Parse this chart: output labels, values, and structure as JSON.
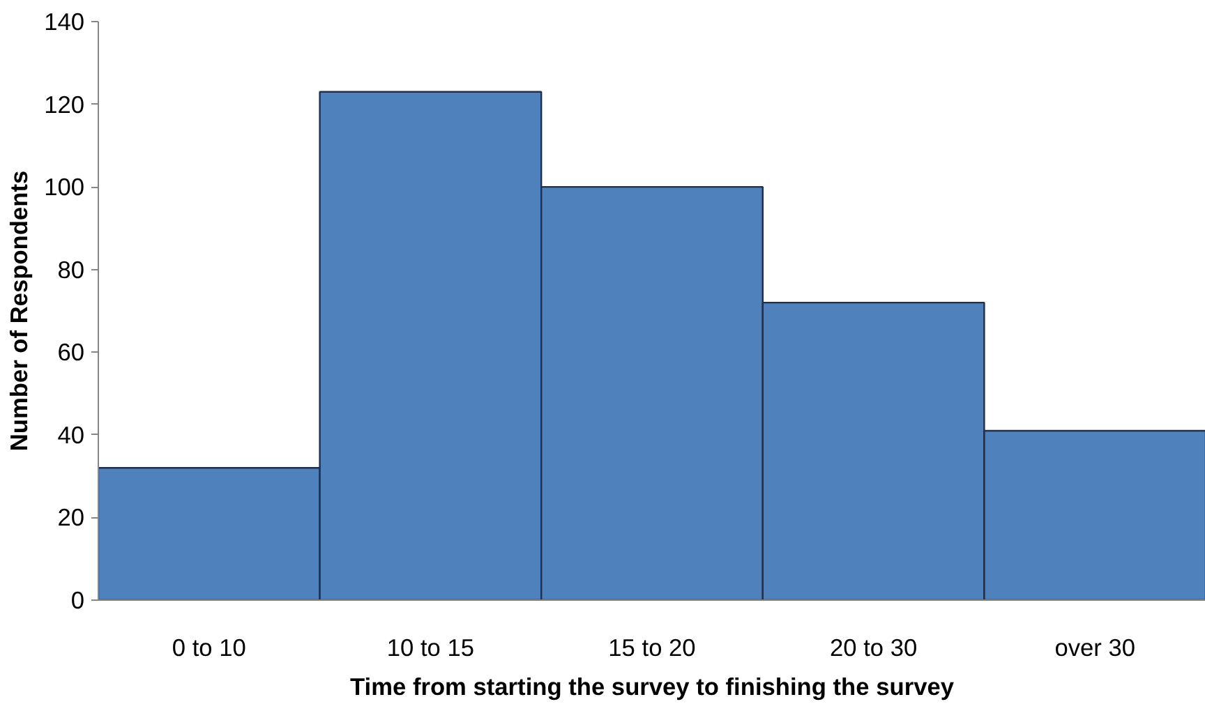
{
  "chart_data": {
    "type": "bar",
    "xlabel": "Time from starting the survey to finishing the survey",
    "ylabel": "Number of Respondents",
    "categories": [
      "0 to 10",
      "10 to 15",
      "15 to 20",
      "20 to 30",
      "over 30"
    ],
    "values": [
      32,
      123,
      100,
      72,
      41
    ],
    "color": "#4f81bd",
    "ylim": [
      0,
      140
    ],
    "yticks": [
      0,
      20,
      40,
      60,
      80,
      100,
      120,
      140
    ],
    "grid": false
  }
}
